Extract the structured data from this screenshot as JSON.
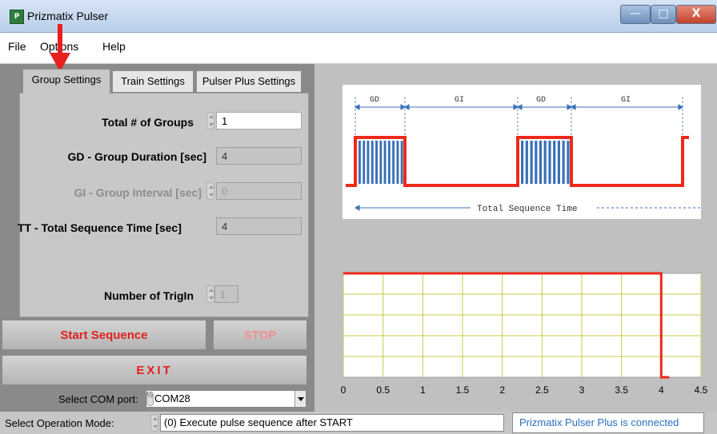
{
  "window": {
    "title": "Prizmatix Pulser",
    "icon_text": "P",
    "min_glyph": "—",
    "max_glyph": "□",
    "close_glyph": "X"
  },
  "menu": [
    "File",
    "Options",
    "Help"
  ],
  "tabs": [
    {
      "label": "Group Settings",
      "active": true
    },
    {
      "label": "Train Settings",
      "active": false
    },
    {
      "label": "Pulser Plus Settings",
      "active": false
    }
  ],
  "form": {
    "total_groups": {
      "label": "Total # of Groups",
      "value": "1"
    },
    "group_duration": {
      "label": "GD - Group Duration [sec]",
      "value": "4"
    },
    "group_interval": {
      "label": "GI - Group Interval [sec]",
      "value": "0"
    },
    "total_sequence": {
      "label": "TT - Total Sequence Time [sec]",
      "value": "4"
    },
    "trigin": {
      "label": "Number of TrigIn",
      "value": "1"
    }
  },
  "buttons": {
    "start": "Start Sequence",
    "stop": "STOP",
    "exit": "EXIT"
  },
  "com": {
    "label": "Select COM port:",
    "value": "COM28",
    "spin_glyph": "½"
  },
  "mode": {
    "label": "Select Operation Mode:",
    "value": "(0) Execute pulse sequence after START"
  },
  "status": "Prizmatix Pulser Plus is connected",
  "diagram": {
    "labels": [
      "GD",
      "GI",
      "GD",
      "GI"
    ],
    "total_label": "Total Sequence Time"
  },
  "colors": {
    "accent_red": "#e02020",
    "pulse_blue": "#3a6fb8",
    "status_blue": "#2a6fc0",
    "plot_grid": "#c8c84a"
  },
  "chart_data": {
    "type": "line",
    "x_ticks": [
      "0",
      "0.5",
      "1",
      "1.5",
      "2",
      "2.5",
      "3",
      "3.5",
      "4",
      "4.5"
    ],
    "xlim": [
      0,
      4.5
    ],
    "ylim": [
      0,
      1
    ],
    "series": [
      {
        "x": [
          0,
          4,
          4,
          4.1
        ],
        "y": [
          1,
          1,
          0,
          0
        ],
        "color": "#ee2a1a"
      }
    ],
    "grid": true
  }
}
